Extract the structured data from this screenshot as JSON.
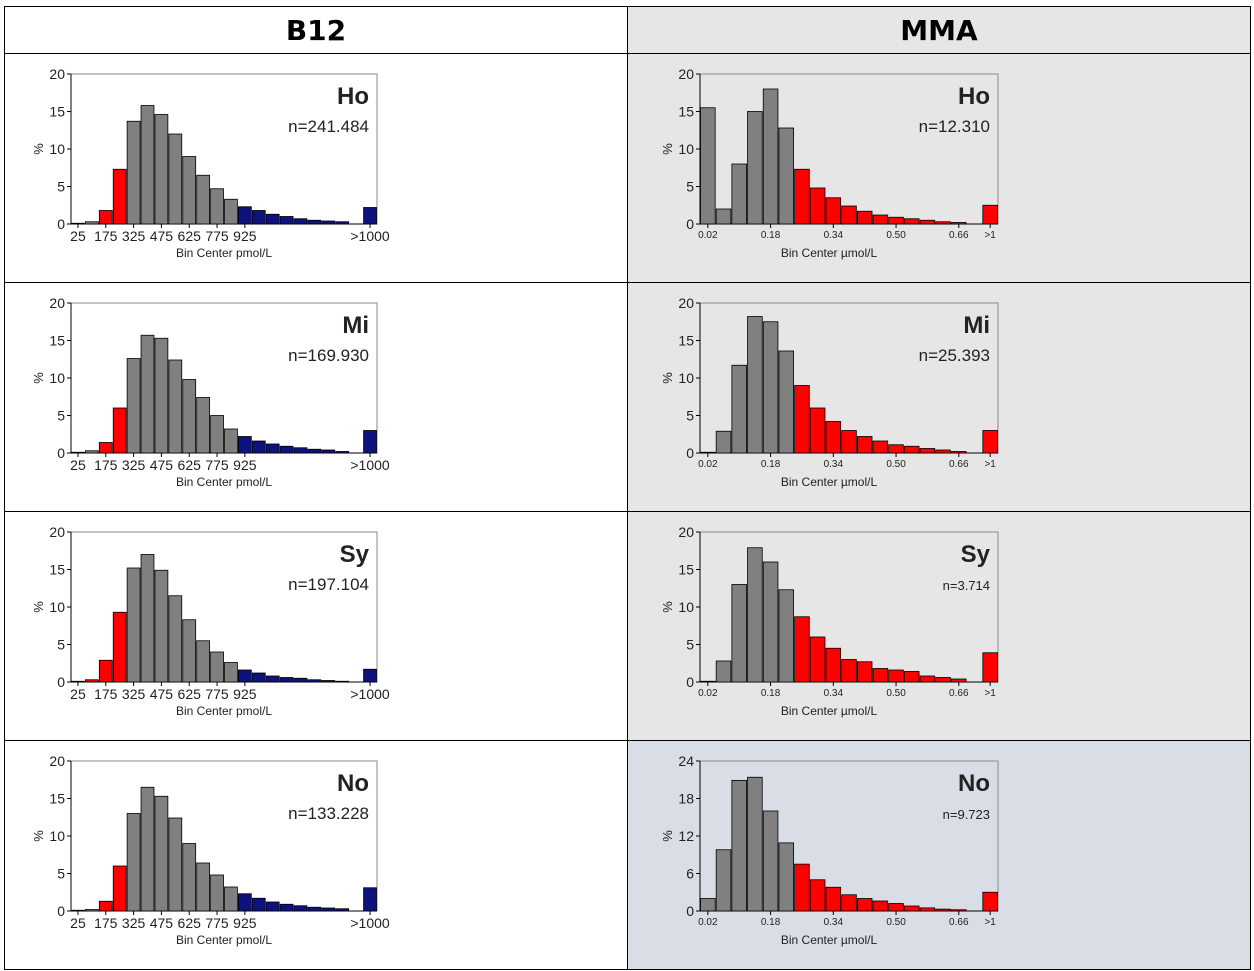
{
  "headers": {
    "left": "B12",
    "right": "MMA"
  },
  "colors": {
    "gray": "#808080",
    "red": "#ff0000",
    "blue": "#0d127d",
    "mma_bg": "#e6e6e6",
    "mma_bg_last": "#d9dee6"
  },
  "chart_data": [
    {
      "id": "b12-ho",
      "type": "bar",
      "label": "Ho",
      "n_text": "n=241.484",
      "xlabel": "Bin Center pmol/L",
      "ylabel": "%",
      "ylim": [
        0,
        20
      ],
      "yticks": [
        "0",
        "5",
        "10",
        "15",
        "20"
      ],
      "xtick_labels": [
        "25",
        "175",
        "325",
        "475",
        "625",
        "775",
        "925",
        ">1000"
      ],
      "values": [
        0.1,
        0.3,
        1.8,
        7.3,
        13.7,
        15.8,
        14.6,
        12.0,
        9.0,
        6.5,
        4.7,
        3.3,
        2.3,
        1.8,
        1.3,
        1.0,
        0.7,
        0.5,
        0.4,
        0.3,
        0,
        2.2
      ],
      "colors": [
        "gray",
        "gray",
        "red",
        "red",
        "gray",
        "gray",
        "gray",
        "gray",
        "gray",
        "gray",
        "gray",
        "gray",
        "blue",
        "blue",
        "blue",
        "blue",
        "blue",
        "blue",
        "blue",
        "blue",
        "blue",
        "blue"
      ]
    },
    {
      "id": "mma-ho",
      "type": "bar",
      "label": "Ho",
      "n_text": "n=12.310",
      "xlabel": "Bin Center µmol/L",
      "ylabel": "%",
      "ylim": [
        0,
        20
      ],
      "yticks": [
        "0",
        "5",
        "10",
        "15",
        "20"
      ],
      "xtick_labels": [
        "0.02",
        "0.18",
        "0.34",
        "0.50",
        "0.66",
        ">1"
      ],
      "values": [
        15.5,
        2.0,
        8.0,
        15.0,
        18.0,
        12.8,
        7.3,
        4.8,
        3.5,
        2.4,
        1.7,
        1.2,
        0.9,
        0.7,
        0.5,
        0.3,
        0.2,
        0,
        2.5
      ],
      "colors": [
        "gray",
        "gray",
        "gray",
        "gray",
        "gray",
        "gray",
        "red",
        "red",
        "red",
        "red",
        "red",
        "red",
        "red",
        "red",
        "red",
        "red",
        "red",
        "red",
        "red"
      ]
    },
    {
      "id": "b12-mi",
      "type": "bar",
      "label": "Mi",
      "n_text": "n=169.930",
      "xlabel": "Bin Center pmol/L",
      "ylabel": "%",
      "ylim": [
        0,
        20
      ],
      "yticks": [
        "0",
        "5",
        "10",
        "15",
        "20"
      ],
      "xtick_labels": [
        "25",
        "175",
        "325",
        "475",
        "625",
        "775",
        "925",
        ">1000"
      ],
      "values": [
        0.1,
        0.3,
        1.4,
        6.0,
        12.6,
        15.7,
        15.3,
        12.4,
        9.8,
        7.4,
        5.0,
        3.2,
        2.2,
        1.6,
        1.2,
        0.9,
        0.7,
        0.5,
        0.4,
        0.2,
        0,
        3.0
      ],
      "colors": [
        "gray",
        "gray",
        "red",
        "red",
        "gray",
        "gray",
        "gray",
        "gray",
        "gray",
        "gray",
        "gray",
        "gray",
        "blue",
        "blue",
        "blue",
        "blue",
        "blue",
        "blue",
        "blue",
        "blue",
        "blue",
        "blue"
      ]
    },
    {
      "id": "mma-mi",
      "type": "bar",
      "label": "Mi",
      "n_text": "n=25.393",
      "xlabel": "Bin Center µmol/L",
      "ylabel": "%",
      "ylim": [
        0,
        20
      ],
      "yticks": [
        "0",
        "5",
        "10",
        "15",
        "20"
      ],
      "xtick_labels": [
        "0.02",
        "0.18",
        "0.34",
        "0.50",
        "0.66",
        ">1"
      ],
      "values": [
        0.1,
        2.9,
        11.7,
        18.2,
        17.5,
        13.6,
        9.0,
        6.0,
        4.2,
        3.0,
        2.2,
        1.6,
        1.1,
        0.9,
        0.6,
        0.4,
        0.2,
        0,
        3.0
      ],
      "colors": [
        "gray",
        "gray",
        "gray",
        "gray",
        "gray",
        "gray",
        "red",
        "red",
        "red",
        "red",
        "red",
        "red",
        "red",
        "red",
        "red",
        "red",
        "red",
        "red",
        "red"
      ]
    },
    {
      "id": "b12-sy",
      "type": "bar",
      "label": "Sy",
      "n_text": "n=197.104",
      "xlabel": "Bin Center pmol/L",
      "ylabel": "%",
      "ylim": [
        0,
        20
      ],
      "yticks": [
        "0",
        "5",
        "10",
        "15",
        "20"
      ],
      "xtick_labels": [
        "25",
        "175",
        "325",
        "475",
        "625",
        "775",
        "925",
        ">1000"
      ],
      "values": [
        0.1,
        0.3,
        2.9,
        9.3,
        15.2,
        17.0,
        14.9,
        11.5,
        8.3,
        5.5,
        4.0,
        2.6,
        1.6,
        1.2,
        0.8,
        0.6,
        0.5,
        0.3,
        0.2,
        0.1,
        0,
        1.7
      ],
      "colors": [
        "gray",
        "red",
        "red",
        "red",
        "gray",
        "gray",
        "gray",
        "gray",
        "gray",
        "gray",
        "gray",
        "gray",
        "blue",
        "blue",
        "blue",
        "blue",
        "blue",
        "blue",
        "blue",
        "blue",
        "blue",
        "blue"
      ]
    },
    {
      "id": "mma-sy",
      "type": "bar",
      "label": "Sy",
      "n_text": "n=3.714",
      "xlabel": "Bin Center µmol/L",
      "ylabel": "%",
      "ylim": [
        0,
        20
      ],
      "yticks": [
        "0",
        "5",
        "10",
        "15",
        "20"
      ],
      "xtick_labels": [
        "0.02",
        "0.18",
        "0.34",
        "0.50",
        "0.66",
        ">1"
      ],
      "values": [
        0.1,
        2.8,
        13.0,
        17.9,
        16.0,
        12.3,
        8.7,
        6.0,
        4.5,
        3.0,
        2.7,
        1.8,
        1.6,
        1.4,
        0.8,
        0.6,
        0.4,
        0,
        3.9
      ],
      "colors": [
        "gray",
        "gray",
        "gray",
        "gray",
        "gray",
        "gray",
        "red",
        "red",
        "red",
        "red",
        "red",
        "red",
        "red",
        "red",
        "red",
        "red",
        "red",
        "red",
        "red"
      ]
    },
    {
      "id": "b12-no",
      "type": "bar",
      "label": "No",
      "n_text": "n=133.228",
      "xlabel": "Bin Center pmol/L",
      "ylabel": "%",
      "ylim": [
        0,
        20
      ],
      "yticks": [
        "0",
        "5",
        "10",
        "15",
        "20"
      ],
      "xtick_labels": [
        "25",
        "175",
        "325",
        "475",
        "625",
        "775",
        "925",
        ">1000"
      ],
      "values": [
        0.1,
        0.2,
        1.3,
        6.0,
        13.0,
        16.5,
        15.3,
        12.4,
        9.0,
        6.4,
        4.8,
        3.2,
        2.3,
        1.7,
        1.2,
        0.9,
        0.7,
        0.5,
        0.4,
        0.3,
        0,
        3.1
      ],
      "colors": [
        "gray",
        "gray",
        "red",
        "red",
        "gray",
        "gray",
        "gray",
        "gray",
        "gray",
        "gray",
        "gray",
        "gray",
        "blue",
        "blue",
        "blue",
        "blue",
        "blue",
        "blue",
        "blue",
        "blue",
        "blue",
        "blue"
      ]
    },
    {
      "id": "mma-no",
      "type": "bar",
      "label": "No",
      "n_text": "n=9.723",
      "xlabel": "Bin Center µmol/L",
      "ylabel": "%",
      "ylim": [
        0,
        24
      ],
      "yticks": [
        "0",
        "6",
        "12",
        "18",
        "24"
      ],
      "xtick_labels": [
        "0.02",
        "0.18",
        "0.34",
        "0.50",
        "0.66",
        ">1"
      ],
      "values": [
        2.0,
        9.8,
        20.9,
        21.4,
        16.0,
        10.9,
        7.5,
        5.0,
        3.8,
        2.6,
        2.0,
        1.6,
        1.2,
        0.8,
        0.5,
        0.3,
        0.2,
        0,
        3.0
      ],
      "colors": [
        "gray",
        "gray",
        "gray",
        "gray",
        "gray",
        "gray",
        "red",
        "red",
        "red",
        "red",
        "red",
        "red",
        "red",
        "red",
        "red",
        "red",
        "red",
        "red",
        "red"
      ]
    }
  ]
}
